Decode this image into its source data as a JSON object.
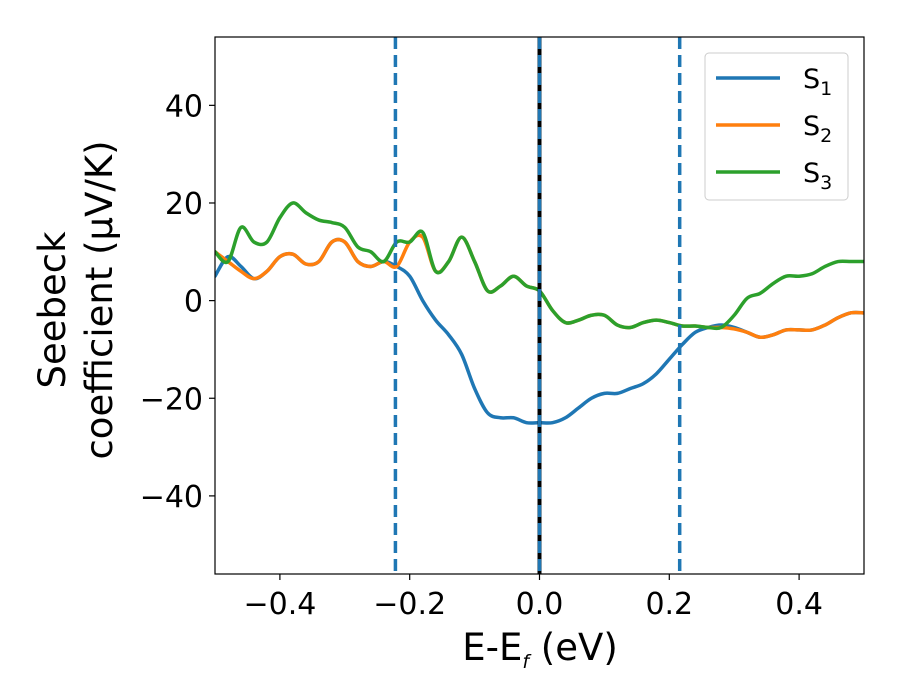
{
  "chart_data": {
    "type": "line",
    "xlabel_main": "E-E",
    "xlabel_sub": "f",
    "xlabel_tail": " (eV)",
    "ylabel_line1": "Seebeck",
    "ylabel_line2": "coefficient  (μV/K)",
    "xlim": [
      -0.5,
      0.5
    ],
    "ylim": [
      -56,
      54
    ],
    "xticks": [
      -0.4,
      -0.2,
      0.0,
      0.2,
      0.4
    ],
    "xtick_labels": [
      "−0.4",
      "−0.2",
      "0.0",
      "0.2",
      "0.4"
    ],
    "yticks": [
      -40,
      -20,
      0,
      20,
      40
    ],
    "ytick_labels": [
      "−40",
      "−20",
      "0",
      "20",
      "40"
    ],
    "vlines": [
      {
        "x": -0.222,
        "style": "dashed",
        "color": "#1f77b4"
      },
      {
        "x": 0.0,
        "style": "solid",
        "color": "#000000"
      },
      {
        "x": 0.0,
        "style": "dashed",
        "color": "#1f77b4"
      },
      {
        "x": 0.216,
        "style": "dashed",
        "color": "#1f77b4"
      }
    ],
    "legend_position": "top-right",
    "series": [
      {
        "name": "S",
        "sub": "1",
        "color": "#1f77b4",
        "x": [
          -0.5,
          -0.48,
          -0.46,
          -0.44,
          -0.42,
          -0.4,
          -0.38,
          -0.36,
          -0.34,
          -0.32,
          -0.3,
          -0.28,
          -0.26,
          -0.24,
          -0.22,
          -0.2,
          -0.18,
          -0.16,
          -0.14,
          -0.12,
          -0.1,
          -0.08,
          -0.06,
          -0.04,
          -0.02,
          0.0,
          0.02,
          0.04,
          0.06,
          0.08,
          0.1,
          0.12,
          0.14,
          0.16,
          0.18,
          0.2,
          0.22,
          0.24,
          0.26,
          0.28,
          0.3,
          0.32,
          0.34,
          0.36,
          0.38,
          0.4,
          0.42,
          0.44,
          0.46,
          0.48,
          0.5
        ],
        "y": [
          5,
          9,
          7,
          4.5,
          6,
          9,
          9.5,
          7.5,
          8,
          12,
          12,
          8,
          7,
          8,
          7,
          5,
          0,
          -4,
          -7,
          -11,
          -18,
          -23,
          -24,
          -24,
          -25,
          -25,
          -25,
          -24,
          -22,
          -20,
          -19,
          -19,
          -18,
          -17,
          -15,
          -12,
          -9,
          -6.5,
          -5.5,
          -5,
          -5.5,
          -6.5,
          -7.5,
          -7,
          -6,
          -6,
          -6,
          -5,
          -3.5,
          -2.5,
          -2.5
        ]
      },
      {
        "name": "S",
        "sub": "2",
        "color": "#ff7f0e",
        "x": [
          -0.5,
          -0.48,
          -0.46,
          -0.44,
          -0.42,
          -0.4,
          -0.38,
          -0.36,
          -0.34,
          -0.32,
          -0.3,
          -0.28,
          -0.26,
          -0.24,
          -0.22,
          -0.2,
          -0.18,
          -0.16,
          -0.14,
          -0.12,
          -0.1,
          -0.08,
          -0.06,
          -0.04,
          -0.02,
          0.0,
          0.02,
          0.04,
          0.06,
          0.08,
          0.1,
          0.12,
          0.14,
          0.16,
          0.18,
          0.2,
          0.22,
          0.24,
          0.26,
          0.28,
          0.3,
          0.32,
          0.34,
          0.36,
          0.38,
          0.4,
          0.42,
          0.44,
          0.46,
          0.48,
          0.5
        ],
        "y": [
          10,
          8,
          6,
          4.5,
          6,
          9,
          9.5,
          7.5,
          8,
          12,
          12,
          8,
          7,
          8,
          7,
          12,
          13,
          6,
          8,
          13,
          8,
          2,
          3,
          5,
          3,
          2,
          -2,
          -4.5,
          -4,
          -3,
          -3,
          -5,
          -5.5,
          -4.5,
          -4,
          -4.5,
          -5.2,
          -5.2,
          -5.5,
          -5.5,
          -5.8,
          -6.5,
          -7.5,
          -7,
          -6,
          -6,
          -6,
          -5,
          -3.5,
          -2.5,
          -2.5
        ]
      },
      {
        "name": "S",
        "sub": "3",
        "color": "#2ca02c",
        "x": [
          -0.5,
          -0.48,
          -0.46,
          -0.44,
          -0.42,
          -0.4,
          -0.38,
          -0.36,
          -0.34,
          -0.32,
          -0.3,
          -0.28,
          -0.26,
          -0.24,
          -0.22,
          -0.2,
          -0.18,
          -0.16,
          -0.14,
          -0.12,
          -0.1,
          -0.08,
          -0.06,
          -0.04,
          -0.02,
          0.0,
          0.02,
          0.04,
          0.06,
          0.08,
          0.1,
          0.12,
          0.14,
          0.16,
          0.18,
          0.2,
          0.22,
          0.24,
          0.26,
          0.28,
          0.3,
          0.32,
          0.34,
          0.36,
          0.38,
          0.4,
          0.42,
          0.44,
          0.46,
          0.48,
          0.5
        ],
        "y": [
          10,
          8,
          15,
          12,
          12,
          17,
          20,
          18,
          16.5,
          16,
          15,
          11,
          10,
          8,
          12,
          12,
          14,
          6,
          8,
          13,
          8,
          2,
          3,
          5,
          3,
          2,
          -2,
          -4.5,
          -4,
          -3,
          -3,
          -5,
          -5.5,
          -4.5,
          -4,
          -4.5,
          -5.2,
          -5.2,
          -5.5,
          -5.5,
          -3,
          0.5,
          1.5,
          3.5,
          5,
          5,
          5.5,
          7,
          8,
          8,
          8
        ]
      }
    ]
  }
}
